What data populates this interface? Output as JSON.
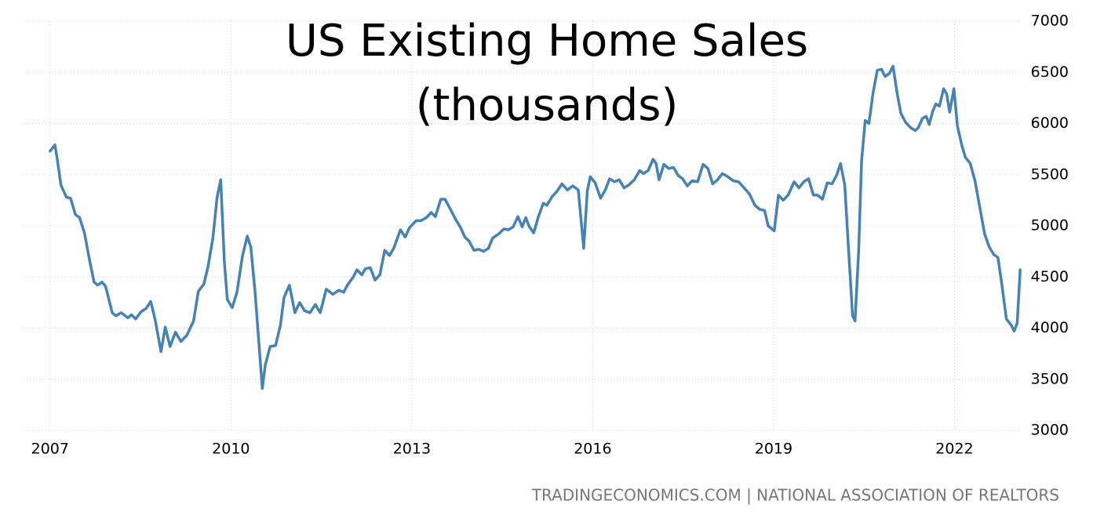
{
  "chart_data": {
    "type": "line",
    "title": "US Existing Home Sales",
    "subtitle": "(thousands)",
    "source": "TRADINGECONOMICS.COM | NATIONAL ASSOCIATION OF REALTORS",
    "color": "#4682b4",
    "grid": true,
    "xlim": [
      2006.56,
      2023.1
    ],
    "ylim": [
      3000,
      7000
    ],
    "xticks": [
      2007,
      2010,
      2013,
      2016,
      2019,
      2022
    ],
    "yticks": [
      3000,
      3500,
      4000,
      4500,
      5000,
      5500,
      6000,
      6500,
      7000
    ],
    "x": [
      2007.0,
      2007.08,
      2007.12,
      2007.18,
      2007.27,
      2007.34,
      2007.42,
      2007.49,
      2007.57,
      2007.66,
      2007.73,
      2007.79,
      2007.86,
      2007.92,
      2008.03,
      2008.09,
      2008.18,
      2008.29,
      2008.35,
      2008.42,
      2008.51,
      2008.59,
      2008.67,
      2008.74,
      2008.84,
      2008.91,
      2008.99,
      2009.08,
      2009.17,
      2009.27,
      2009.38,
      2009.46,
      2009.55,
      2009.62,
      2009.7,
      2009.77,
      2009.83,
      2009.89,
      2009.94,
      2010.02,
      2010.1,
      2010.19,
      2010.27,
      2010.33,
      2010.4,
      2010.46,
      2010.52,
      2010.57,
      2010.65,
      2010.74,
      2010.82,
      2010.88,
      2010.97,
      2011.06,
      2011.14,
      2011.22,
      2011.31,
      2011.4,
      2011.48,
      2011.58,
      2011.69,
      2011.79,
      2011.87,
      2011.93,
      2012.03,
      2012.09,
      2012.17,
      2012.23,
      2012.31,
      2012.39,
      2012.47,
      2012.55,
      2012.63,
      2012.7,
      2012.81,
      2012.89,
      2012.96,
      2013.07,
      2013.15,
      2013.24,
      2013.32,
      2013.39,
      2013.48,
      2013.55,
      2013.64,
      2013.72,
      2013.8,
      2013.88,
      2013.95,
      2014.03,
      2014.11,
      2014.19,
      2014.27,
      2014.34,
      2014.44,
      2014.53,
      2014.6,
      2014.68,
      2014.76,
      2014.83,
      2014.89,
      2014.94,
      2015.02,
      2015.1,
      2015.18,
      2015.24,
      2015.32,
      2015.41,
      2015.49,
      2015.58,
      2015.67,
      2015.76,
      2015.85,
      2015.91,
      2015.96,
      2016.04,
      2016.13,
      2016.21,
      2016.28,
      2016.36,
      2016.44,
      2016.52,
      2016.6,
      2016.69,
      2016.78,
      2016.84,
      2016.92,
      2017.0,
      2017.05,
      2017.1,
      2017.18,
      2017.26,
      2017.34,
      2017.42,
      2017.49,
      2017.57,
      2017.65,
      2017.74,
      2017.83,
      2017.91,
      2017.99,
      2018.07,
      2018.15,
      2018.24,
      2018.33,
      2018.42,
      2018.51,
      2018.6,
      2018.69,
      2018.77,
      2018.85,
      2018.91,
      2019.01,
      2019.08,
      2019.16,
      2019.24,
      2019.34,
      2019.42,
      2019.5,
      2019.58,
      2019.66,
      2019.73,
      2019.81,
      2019.89,
      2019.97,
      2020.05,
      2020.11,
      2020.18,
      2020.24,
      2020.31,
      2020.35,
      2020.41,
      2020.46,
      2020.52,
      2020.58,
      2020.65,
      2020.72,
      2020.79,
      2020.85,
      2020.92,
      2020.98,
      2021.05,
      2021.11,
      2021.19,
      2021.27,
      2021.35,
      2021.4,
      2021.47,
      2021.53,
      2021.58,
      2021.64,
      2021.69,
      2021.75,
      2021.82,
      2021.87,
      2021.92,
      2021.99,
      2022.05,
      2022.12,
      2022.18,
      2022.26,
      2022.34,
      2022.42,
      2022.5,
      2022.57,
      2022.65,
      2022.72,
      2022.78,
      2022.86,
      2022.94,
      2022.99,
      2023.04,
      2023.09
    ],
    "values": [
      5730,
      5790,
      5650,
      5400,
      5280,
      5270,
      5110,
      5080,
      4930,
      4650,
      4450,
      4420,
      4450,
      4410,
      4150,
      4120,
      4150,
      4100,
      4130,
      4090,
      4160,
      4190,
      4260,
      4090,
      3770,
      4010,
      3820,
      3960,
      3870,
      3930,
      4070,
      4360,
      4430,
      4600,
      4880,
      5280,
      5450,
      4650,
      4280,
      4200,
      4350,
      4700,
      4900,
      4790,
      4350,
      3880,
      3410,
      3640,
      3820,
      3830,
      4030,
      4300,
      4420,
      4150,
      4250,
      4170,
      4150,
      4230,
      4150,
      4380,
      4330,
      4370,
      4350,
      4420,
      4500,
      4570,
      4520,
      4580,
      4590,
      4470,
      4520,
      4760,
      4710,
      4780,
      4960,
      4890,
      4980,
      5050,
      5050,
      5080,
      5130,
      5090,
      5260,
      5260,
      5160,
      5070,
      4990,
      4890,
      4850,
      4760,
      4770,
      4750,
      4780,
      4880,
      4920,
      4970,
      4960,
      4990,
      5090,
      4990,
      5080,
      5000,
      4930,
      5090,
      5220,
      5200,
      5280,
      5340,
      5410,
      5350,
      5390,
      5350,
      4780,
      5340,
      5480,
      5420,
      5270,
      5350,
      5460,
      5430,
      5450,
      5370,
      5400,
      5450,
      5540,
      5510,
      5540,
      5650,
      5610,
      5450,
      5600,
      5560,
      5570,
      5490,
      5460,
      5390,
      5440,
      5430,
      5600,
      5560,
      5410,
      5450,
      5510,
      5480,
      5440,
      5430,
      5370,
      5310,
      5200,
      5160,
      5150,
      5000,
      4950,
      5300,
      5250,
      5300,
      5430,
      5370,
      5430,
      5460,
      5300,
      5300,
      5260,
      5420,
      5410,
      5500,
      5610,
      5400,
      4800,
      4120,
      4070,
      4750,
      5640,
      6030,
      6000,
      6300,
      6520,
      6530,
      6460,
      6490,
      6560,
      6290,
      6100,
      6010,
      5960,
      5930,
      5960,
      6050,
      6070,
      5990,
      6120,
      6190,
      6170,
      6340,
      6290,
      6110,
      6340,
      5970,
      5790,
      5670,
      5610,
      5440,
      5180,
      4920,
      4800,
      4720,
      4690,
      4450,
      4090,
      4030,
      3970,
      4050,
      4570
    ]
  }
}
